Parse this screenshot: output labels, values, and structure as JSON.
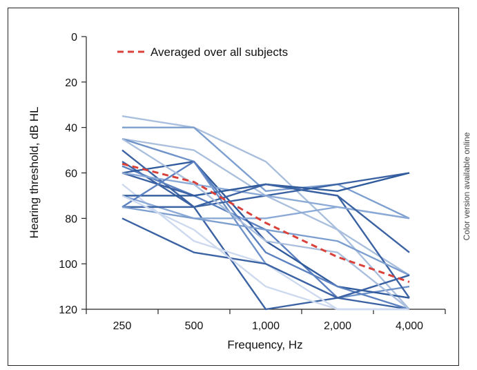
{
  "side_note": "Color version available online",
  "chart_data": {
    "type": "line",
    "xlabel": "Frequency, Hz",
    "ylabel": "Hearing threshold, dB HL",
    "categories": [
      "250",
      "500",
      "1,000",
      "2,000",
      "4,000"
    ],
    "yticks": [
      0,
      20,
      40,
      60,
      80,
      100,
      120
    ],
    "ylim": [
      0,
      120
    ],
    "y_inverted": true,
    "grid": false,
    "legend_position": "top-left",
    "average": {
      "name": "Averaged over all subjects",
      "values": [
        56,
        64,
        82,
        97,
        108
      ],
      "color": "#d9413a"
    },
    "subjects": [
      {
        "values": [
          35,
          40,
          55,
          85,
          120
        ],
        "color": "#a9bfdd"
      },
      {
        "values": [
          40,
          40,
          68,
          65,
          80
        ],
        "color": "#7d9fd0"
      },
      {
        "values": [
          45,
          50,
          70,
          85,
          105
        ],
        "color": "#a9bfdd"
      },
      {
        "values": [
          45,
          55,
          100,
          115,
          110
        ],
        "color": "#6f93c9"
      },
      {
        "values": [
          50,
          75,
          70,
          65,
          60
        ],
        "color": "#3b62a3"
      },
      {
        "values": [
          55,
          75,
          120,
          115,
          120
        ],
        "color": "#3b62a3"
      },
      {
        "values": [
          57,
          70,
          85,
          115,
          105
        ],
        "color": "#5a80c0"
      },
      {
        "values": [
          60,
          55,
          90,
          110,
          115
        ],
        "color": "#2f5a9c"
      },
      {
        "values": [
          60,
          70,
          65,
          70,
          115
        ],
        "color": "#3b62a3"
      },
      {
        "values": [
          60,
          65,
          70,
          75,
          80
        ],
        "color": "#8aa9d6"
      },
      {
        "values": [
          65,
          90,
          100,
          120,
          120
        ],
        "color": "#cdd9ee"
      },
      {
        "values": [
          70,
          80,
          80,
          75,
          80
        ],
        "color": "#8aa9d6"
      },
      {
        "values": [
          70,
          70,
          65,
          68,
          60
        ],
        "color": "#2f5a9c"
      },
      {
        "values": [
          75,
          75,
          65,
          70,
          95
        ],
        "color": "#3b62a3"
      },
      {
        "values": [
          75,
          55,
          95,
          110,
          120
        ],
        "color": "#5a80c0"
      },
      {
        "values": [
          75,
          80,
          85,
          90,
          105
        ],
        "color": "#7d9fd0"
      },
      {
        "values": [
          80,
          95,
          100,
          115,
          105
        ],
        "color": "#3b62a3"
      },
      {
        "values": [
          70,
          85,
          110,
          120,
          120
        ],
        "color": "#cdd9ee"
      },
      {
        "values": [
          45,
          65,
          90,
          95,
          120
        ],
        "color": "#a9bfdd"
      }
    ]
  }
}
